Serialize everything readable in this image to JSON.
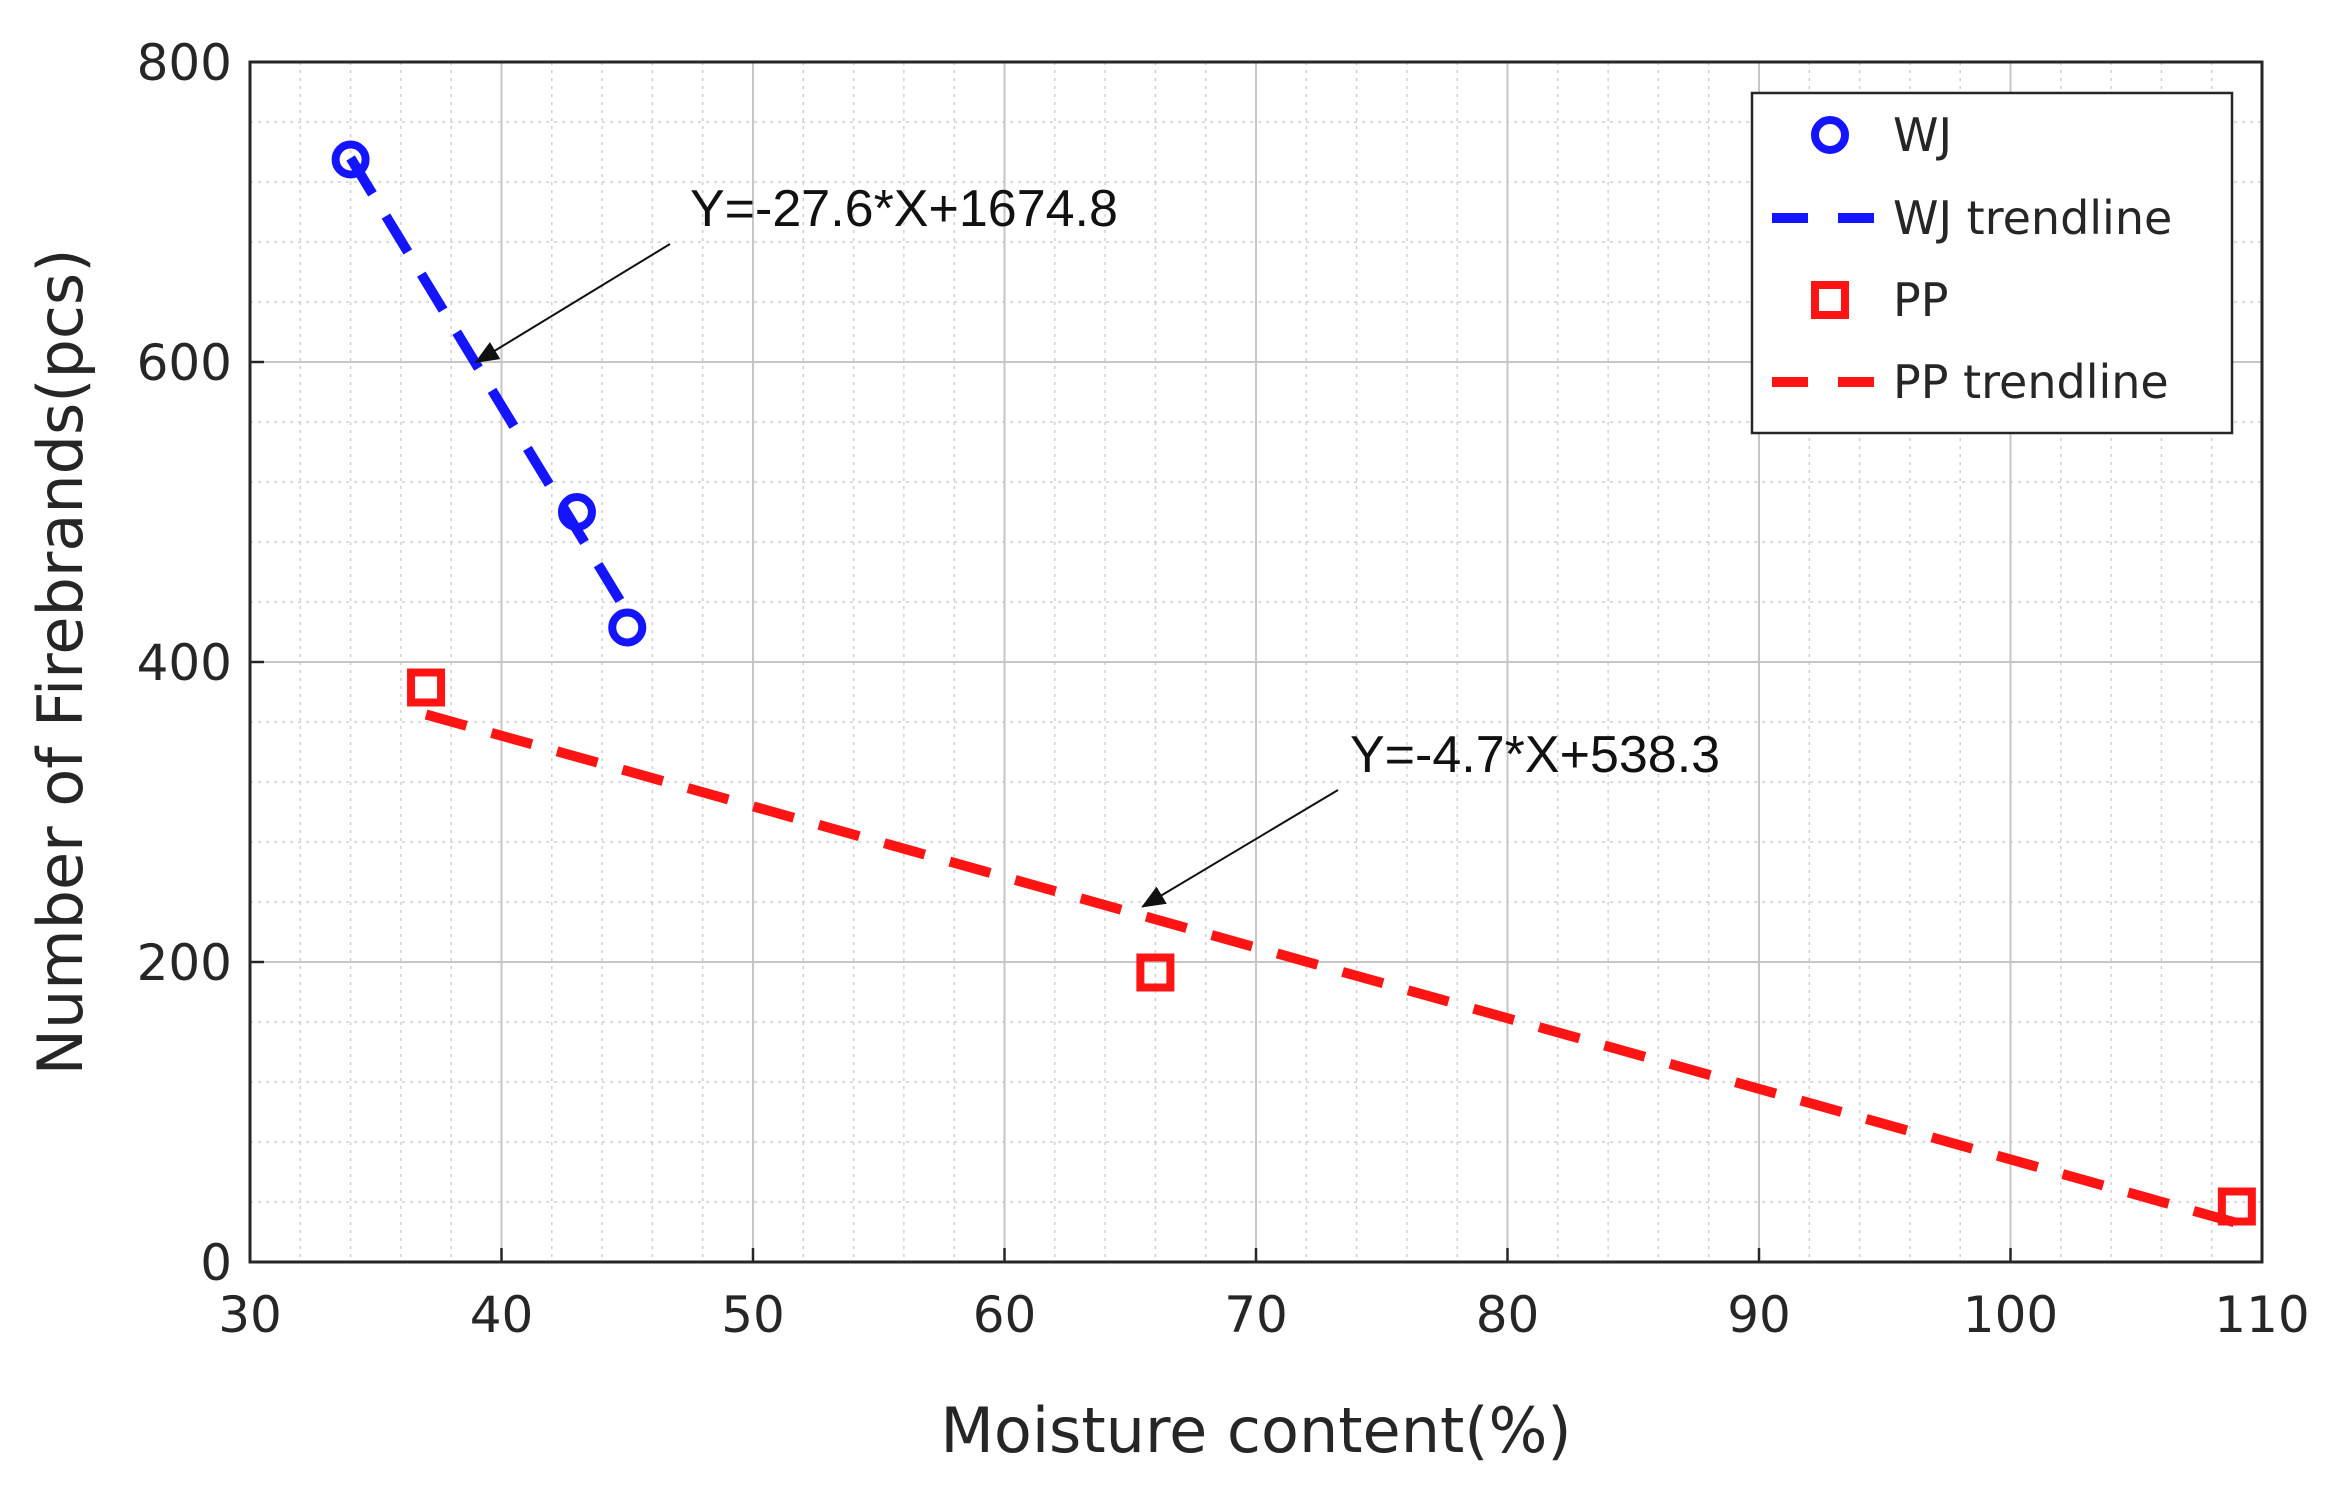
{
  "chart_data": {
    "type": "scatter",
    "title": "",
    "xlabel": "Moisture content(%)",
    "ylabel": "Number of Firebrands(pcs)",
    "xlim": [
      30,
      110
    ],
    "ylim": [
      0,
      800
    ],
    "xticks": [
      30,
      40,
      50,
      60,
      70,
      80,
      90,
      100,
      110
    ],
    "yticks": [
      0,
      200,
      400,
      600,
      800
    ],
    "grid": true,
    "minor_grid": true,
    "legend_position": "top-right",
    "series": [
      {
        "name": "WJ",
        "kind": "points",
        "marker": "circle",
        "color": "#1414ff",
        "points": [
          [
            34,
            735
          ],
          [
            43,
            500
          ],
          [
            45,
            423
          ]
        ]
      },
      {
        "name": "WJ trendline",
        "kind": "line",
        "style": "dashed",
        "color": "#1414ff",
        "points": [
          [
            34,
            736
          ],
          [
            45,
            433
          ]
        ]
      },
      {
        "name": "PP",
        "kind": "points",
        "marker": "square",
        "color": "#ff1414",
        "points": [
          [
            37,
            383
          ],
          [
            66,
            193
          ],
          [
            109,
            37
          ]
        ]
      },
      {
        "name": "PP trendline",
        "kind": "line",
        "style": "dashed",
        "color": "#ff1414",
        "points": [
          [
            37,
            365
          ],
          [
            109,
            26
          ]
        ]
      }
    ],
    "annotations": [
      {
        "text": "Y=-27.6*X+1674.8",
        "arrow_to": [
          39,
          600
        ]
      },
      {
        "text": "Y=-4.7*X+538.3",
        "arrow_to": [
          65.5,
          237
        ]
      }
    ]
  }
}
